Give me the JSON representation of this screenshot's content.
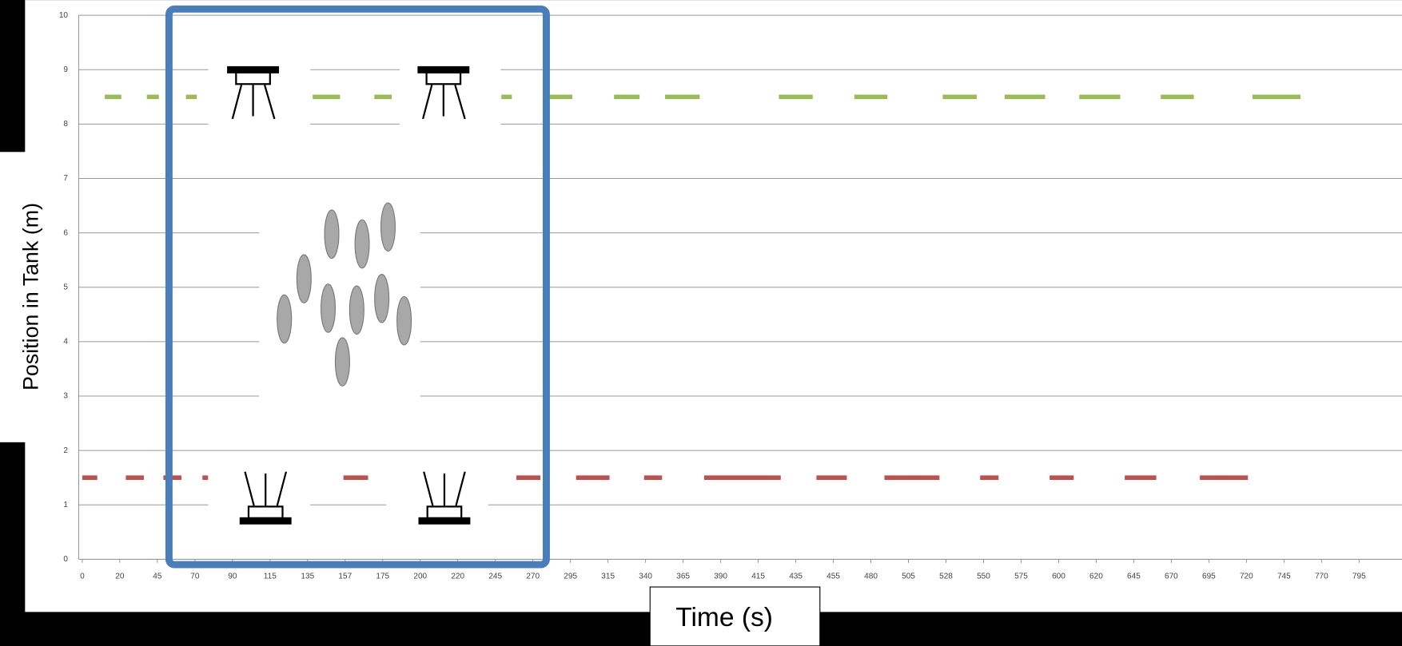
{
  "chart_data": {
    "type": "segments",
    "y_label": "Position in Tank (m)",
    "x_label": "Time (s)",
    "ylim": [
      0,
      10
    ],
    "yticks": [
      0,
      1,
      2,
      3,
      4,
      5,
      6,
      7,
      8,
      9,
      10
    ],
    "grid": true,
    "xticks": [
      0,
      20,
      45,
      70,
      90,
      115,
      135,
      157,
      175,
      200,
      220,
      245,
      270,
      295,
      315,
      340,
      365,
      390,
      415,
      435,
      455,
      480,
      505,
      528,
      550,
      575,
      600,
      620,
      645,
      670,
      695,
      720,
      745,
      770,
      795
    ],
    "series": [
      {
        "color": "#9bbb59",
        "y": 8.5,
        "segments": [
          [
            12,
            21
          ],
          [
            38,
            46
          ],
          [
            64,
            71
          ],
          [
            138,
            154
          ],
          [
            171,
            181
          ],
          [
            249,
            256
          ],
          [
            281,
            296
          ],
          [
            319,
            336
          ],
          [
            353,
            376
          ],
          [
            426,
            444
          ],
          [
            469,
            491
          ],
          [
            526,
            546
          ],
          [
            564,
            591
          ],
          [
            611,
            636
          ],
          [
            663,
            685
          ],
          [
            724,
            756
          ]
        ]
      },
      {
        "color": "#c0504d",
        "y": 1.5,
        "segments": [
          [
            0,
            8
          ],
          [
            24,
            36
          ],
          [
            49,
            61
          ],
          [
            74,
            77
          ],
          [
            156,
            168
          ],
          [
            259,
            275
          ],
          [
            298,
            316
          ],
          [
            339,
            351
          ],
          [
            379,
            427
          ],
          [
            446,
            464
          ],
          [
            489,
            524
          ],
          [
            548,
            560
          ],
          [
            594,
            608
          ],
          [
            639,
            660
          ],
          [
            689,
            721
          ]
        ]
      }
    ]
  }
}
